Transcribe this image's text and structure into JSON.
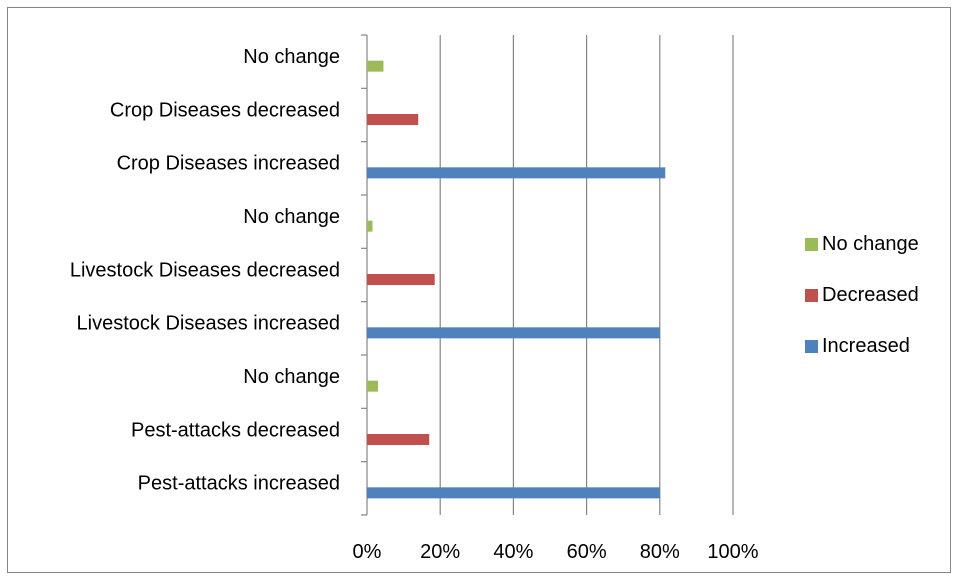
{
  "chart_data": {
    "type": "bar",
    "orientation": "horizontal",
    "categories": [
      "Pest-attacks increased",
      "Pest-attacks decreased",
      "No change",
      "Livestock Diseases increased",
      "Livestock Diseases decreased",
      "No change",
      "Crop Diseases increased",
      "Crop Diseases decreased",
      "No change"
    ],
    "series": [
      {
        "name": "Increased",
        "color": "#4F81BD",
        "values": [
          0.8,
          null,
          null,
          0.8,
          null,
          null,
          0.815,
          null,
          null
        ]
      },
      {
        "name": "Decreased",
        "color": "#C0504D",
        "values": [
          null,
          0.17,
          null,
          null,
          0.185,
          null,
          null,
          0.14,
          null
        ]
      },
      {
        "name": "No change",
        "color": "#9BBB59",
        "values": [
          null,
          null,
          0.03,
          null,
          null,
          0.015,
          null,
          null,
          0.045
        ]
      }
    ],
    "x_ticks": [
      "0%",
      "20%",
      "40%",
      "60%",
      "80%",
      "100%"
    ],
    "xlim": [
      0,
      1
    ],
    "grid": true,
    "legend_position": "right",
    "legend_order": [
      "No change",
      "Decreased",
      "Increased"
    ],
    "title": "",
    "xlabel": "",
    "ylabel": ""
  }
}
